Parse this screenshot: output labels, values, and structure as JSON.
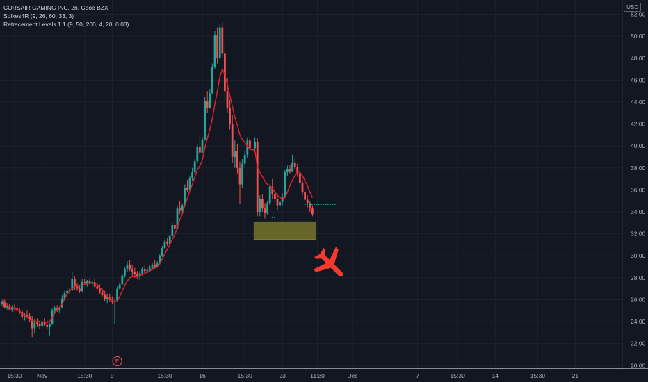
{
  "header": {
    "symbol_line": "CORSAIR GAMING INC, 2h, Cboe BZX",
    "indicator_1": "Spikes4R (9, 26, 60, 33, 3)",
    "indicator_2": "Retracement Levels 1.1 (9, 50, 200, 4, 20, 0.03)",
    "currency": "USD"
  },
  "colors": {
    "background": "#131722",
    "grid": "#1e222d",
    "up": "#26a69a",
    "down": "#ef5350",
    "ma_line": "#e0222a",
    "zone": "#7a7a2a",
    "airplane": "#f23b2e",
    "axis_text": "#b2b5be"
  },
  "chart_data": {
    "type": "candlestick",
    "interval": "2h",
    "ylim": [
      19.7,
      53.3
    ],
    "y_ticks": [
      20,
      22,
      24,
      26,
      28,
      30,
      32,
      34,
      36,
      38,
      40,
      42,
      44,
      46,
      48,
      50,
      52
    ],
    "x_ticks": [
      {
        "label": "15:30",
        "bar": 5
      },
      {
        "label": "Nov",
        "bar": 16
      },
      {
        "label": "15:30",
        "bar": 33
      },
      {
        "label": "9",
        "bar": 44
      },
      {
        "label": "15:30",
        "bar": 65
      },
      {
        "label": "16",
        "bar": 80
      },
      {
        "label": "15:30",
        "bar": 97
      },
      {
        "label": "23",
        "bar": 112
      },
      {
        "label": "11:30",
        "bar": 126
      },
      {
        "label": "Dec",
        "bar": 140
      },
      {
        "label": "7",
        "bar": 166
      },
      {
        "label": "15:30",
        "bar": 182
      },
      {
        "label": "14",
        "bar": 197
      },
      {
        "label": "15:30",
        "bar": 214
      },
      {
        "label": "21",
        "bar": 229
      }
    ],
    "candles_ohlc": [
      [
        25.6,
        25.9,
        25.4,
        25.8
      ],
      [
        25.8,
        26.0,
        25.2,
        25.3
      ],
      [
        25.3,
        25.7,
        25.1,
        25.4
      ],
      [
        25.4,
        25.6,
        25.0,
        25.1
      ],
      [
        25.1,
        25.5,
        24.9,
        25.3
      ],
      [
        25.3,
        25.6,
        25.0,
        25.2
      ],
      [
        25.2,
        25.4,
        24.8,
        25.0
      ],
      [
        25.0,
        25.2,
        24.7,
        24.9
      ],
      [
        24.9,
        25.1,
        24.2,
        24.4
      ],
      [
        24.4,
        24.8,
        24.1,
        24.6
      ],
      [
        24.6,
        25.0,
        24.3,
        24.5
      ],
      [
        24.5,
        24.8,
        24.0,
        24.2
      ],
      [
        24.2,
        24.5,
        22.6,
        23.4
      ],
      [
        23.4,
        24.2,
        22.9,
        23.9
      ],
      [
        23.9,
        24.3,
        23.5,
        23.8
      ],
      [
        23.8,
        24.1,
        23.3,
        23.6
      ],
      [
        23.6,
        24.2,
        23.4,
        24.0
      ],
      [
        24.0,
        24.3,
        23.6,
        23.7
      ],
      [
        23.7,
        24.1,
        23.3,
        23.5
      ],
      [
        23.5,
        23.9,
        22.7,
        23.8
      ],
      [
        23.8,
        25.2,
        23.7,
        25.0
      ],
      [
        25.0,
        25.4,
        24.7,
        25.2
      ],
      [
        25.2,
        25.5,
        24.9,
        25.0
      ],
      [
        25.0,
        25.4,
        24.8,
        25.3
      ],
      [
        25.3,
        26.4,
        25.2,
        26.1
      ],
      [
        26.1,
        26.8,
        25.9,
        26.6
      ],
      [
        26.6,
        27.0,
        26.3,
        26.8
      ],
      [
        26.8,
        27.1,
        26.5,
        26.9
      ],
      [
        26.9,
        28.5,
        26.8,
        27.9
      ],
      [
        27.9,
        28.1,
        26.9,
        27.2
      ],
      [
        27.2,
        27.5,
        26.8,
        27.0
      ],
      [
        27.0,
        27.3,
        26.6,
        26.8
      ],
      [
        26.8,
        27.9,
        26.7,
        27.6
      ],
      [
        27.6,
        27.9,
        27.3,
        27.5
      ],
      [
        27.5,
        27.8,
        27.2,
        27.7
      ],
      [
        27.7,
        27.9,
        27.4,
        27.5
      ],
      [
        27.5,
        27.8,
        27.2,
        27.6
      ],
      [
        27.6,
        27.9,
        27.0,
        27.2
      ],
      [
        27.2,
        27.6,
        26.8,
        27.0
      ],
      [
        27.0,
        27.4,
        26.5,
        26.7
      ],
      [
        26.7,
        27.0,
        26.2,
        26.4
      ],
      [
        26.4,
        26.8,
        25.9,
        26.1
      ],
      [
        26.1,
        26.5,
        25.7,
        26.2
      ],
      [
        26.2,
        26.5,
        25.8,
        26.0
      ],
      [
        26.0,
        26.3,
        25.6,
        25.8
      ],
      [
        25.8,
        26.1,
        23.8,
        25.9
      ],
      [
        25.9,
        27.2,
        25.8,
        27.0
      ],
      [
        27.0,
        27.6,
        26.9,
        27.4
      ],
      [
        27.4,
        28.4,
        27.3,
        28.2
      ],
      [
        28.2,
        29.0,
        28.0,
        28.8
      ],
      [
        28.8,
        29.5,
        28.5,
        29.2
      ],
      [
        29.2,
        29.6,
        28.6,
        28.8
      ],
      [
        28.8,
        29.2,
        28.2,
        28.5
      ],
      [
        28.5,
        28.9,
        28.0,
        28.3
      ],
      [
        28.3,
        28.6,
        27.9,
        28.1
      ],
      [
        28.1,
        28.6,
        27.8,
        28.4
      ],
      [
        28.4,
        29.0,
        28.2,
        28.8
      ],
      [
        28.8,
        29.2,
        28.4,
        28.6
      ],
      [
        28.6,
        29.0,
        28.4,
        28.7
      ],
      [
        28.7,
        29.1,
        28.5,
        28.9
      ],
      [
        28.9,
        29.4,
        28.7,
        29.2
      ],
      [
        29.2,
        29.6,
        28.8,
        29.0
      ],
      [
        29.0,
        29.5,
        28.9,
        29.3
      ],
      [
        29.3,
        30.2,
        29.2,
        30.0
      ],
      [
        30.0,
        30.9,
        29.9,
        30.7
      ],
      [
        30.7,
        31.5,
        30.6,
        31.3
      ],
      [
        31.3,
        31.6,
        30.9,
        31.1
      ],
      [
        31.1,
        31.9,
        31.0,
        31.8
      ],
      [
        31.8,
        33.0,
        31.7,
        32.8
      ],
      [
        32.8,
        33.2,
        32.2,
        32.5
      ],
      [
        32.5,
        34.6,
        32.4,
        34.3
      ],
      [
        34.3,
        35.0,
        33.8,
        34.1
      ],
      [
        34.1,
        34.8,
        33.9,
        34.6
      ],
      [
        34.6,
        36.5,
        34.5,
        36.2
      ],
      [
        36.2,
        36.9,
        35.8,
        36.0
      ],
      [
        36.0,
        37.3,
        35.9,
        37.1
      ],
      [
        37.1,
        38.0,
        36.8,
        37.6
      ],
      [
        37.6,
        38.8,
        37.5,
        38.6
      ],
      [
        38.6,
        40.2,
        38.4,
        39.9
      ],
      [
        39.9,
        41.0,
        39.2,
        39.4
      ],
      [
        39.4,
        40.8,
        39.3,
        40.6
      ],
      [
        40.6,
        44.5,
        40.5,
        44.1
      ],
      [
        44.1,
        45.0,
        43.0,
        43.5
      ],
      [
        43.5,
        45.2,
        43.4,
        44.8
      ],
      [
        44.8,
        47.5,
        44.7,
        47.2
      ],
      [
        47.2,
        50.5,
        47.0,
        50.1
      ],
      [
        50.1,
        50.8,
        47.5,
        48.0
      ],
      [
        48.0,
        51.1,
        47.9,
        50.8
      ],
      [
        50.8,
        51.3,
        48.1,
        48.4
      ],
      [
        48.4,
        49.5,
        44.2,
        45.0
      ],
      [
        45.0,
        46.2,
        43.0,
        43.5
      ],
      [
        43.5,
        44.2,
        41.5,
        42.0
      ],
      [
        42.0,
        42.8,
        38.5,
        39.0
      ],
      [
        39.0,
        40.5,
        38.0,
        39.5
      ],
      [
        39.5,
        40.2,
        37.5,
        38.0
      ],
      [
        38.0,
        38.6,
        34.7,
        36.5
      ],
      [
        36.5,
        38.8,
        36.2,
        38.4
      ],
      [
        38.4,
        39.6,
        38.0,
        39.2
      ],
      [
        39.2,
        40.8,
        38.9,
        40.5
      ],
      [
        40.5,
        41.0,
        39.5,
        39.8
      ],
      [
        39.8,
        40.8,
        39.6,
        40.4
      ],
      [
        40.4,
        40.7,
        33.6,
        34.0
      ],
      [
        34.0,
        35.5,
        33.6,
        35.2
      ],
      [
        35.2,
        35.6,
        34.0,
        34.3
      ],
      [
        34.3,
        34.8,
        33.4,
        33.9
      ],
      [
        33.9,
        35.0,
        33.7,
        34.8
      ],
      [
        34.8,
        36.5,
        34.6,
        36.3
      ],
      [
        36.3,
        37.0,
        35.2,
        35.6
      ],
      [
        35.6,
        36.2,
        34.8,
        35.2
      ],
      [
        35.2,
        35.6,
        34.2,
        34.6
      ],
      [
        34.6,
        35.1,
        34.3,
        34.9
      ],
      [
        34.9,
        35.7,
        34.6,
        35.4
      ],
      [
        35.4,
        37.8,
        35.3,
        37.6
      ],
      [
        37.6,
        38.2,
        37.3,
        37.9
      ],
      [
        37.9,
        38.3,
        37.5,
        37.7
      ],
      [
        37.7,
        39.2,
        37.6,
        38.5
      ],
      [
        38.5,
        38.9,
        37.8,
        38.1
      ],
      [
        38.1,
        38.4,
        37.2,
        37.5
      ],
      [
        37.5,
        37.9,
        36.2,
        36.6
      ],
      [
        36.6,
        36.9,
        35.5,
        35.8
      ],
      [
        35.8,
        36.0,
        34.9,
        35.1
      ],
      [
        35.1,
        35.5,
        34.4,
        34.8
      ],
      [
        34.8,
        35.0,
        34.0,
        34.3
      ],
      [
        34.3,
        34.6,
        33.6,
        33.8
      ]
    ],
    "gaps_before": [
      {
        "index": 100,
        "bars": 1
      }
    ],
    "ma_line": [
      26.0,
      25.85,
      25.55,
      25.35,
      25.25,
      25.15,
      25.1,
      24.95,
      24.75,
      24.55,
      24.4,
      24.2,
      24.1,
      24.05,
      24.0,
      24.0,
      23.95,
      23.95,
      23.95,
      24.0,
      24.3,
      24.8,
      25.1,
      25.3,
      25.6,
      26.1,
      26.5,
      26.8,
      27.0,
      27.2,
      27.3,
      27.3,
      27.3,
      27.4,
      27.45,
      27.5,
      27.5,
      27.45,
      27.3,
      27.1,
      26.9,
      26.6,
      26.3,
      26.1,
      25.9,
      25.8,
      25.9,
      26.3,
      26.8,
      27.3,
      27.7,
      28.0,
      28.1,
      28.1,
      28.1,
      28.2,
      28.3,
      28.4,
      28.5,
      28.6,
      28.8,
      28.9,
      29.0,
      29.3,
      29.7,
      30.2,
      30.6,
      31.0,
      31.5,
      31.9,
      32.6,
      33.3,
      33.8,
      34.6,
      35.2,
      35.9,
      36.5,
      37.2,
      37.8,
      38.2,
      38.7,
      39.8,
      40.7,
      41.5,
      42.5,
      43.8,
      45.0,
      46.3,
      47.0,
      46.5,
      45.6,
      44.6,
      43.6,
      42.6,
      41.9,
      41.0,
      40.6,
      40.3,
      40.0,
      39.7,
      39.6,
      38.1,
      37.6,
      37.2,
      36.8,
      36.5,
      36.4,
      36.1,
      35.8,
      35.5,
      35.3,
      35.2,
      35.3,
      35.8,
      36.4,
      36.9,
      37.3,
      37.6,
      37.6,
      37.3,
      36.8,
      36.4,
      35.8,
      35.3
    ],
    "price_dots": [
      {
        "after_index": 107,
        "price": 33.5,
        "count": 2
      },
      {
        "after_index": 120,
        "price": 34.7,
        "count": 14
      }
    ],
    "retracement_zone": {
      "from_index": 101,
      "to_index": 123,
      "y_low": 31.5,
      "y_high": 33.1
    },
    "earnings_marker": {
      "label": "E",
      "bar": 46
    },
    "annotation": {
      "shape": "airplane",
      "price": 29.3
    }
  }
}
